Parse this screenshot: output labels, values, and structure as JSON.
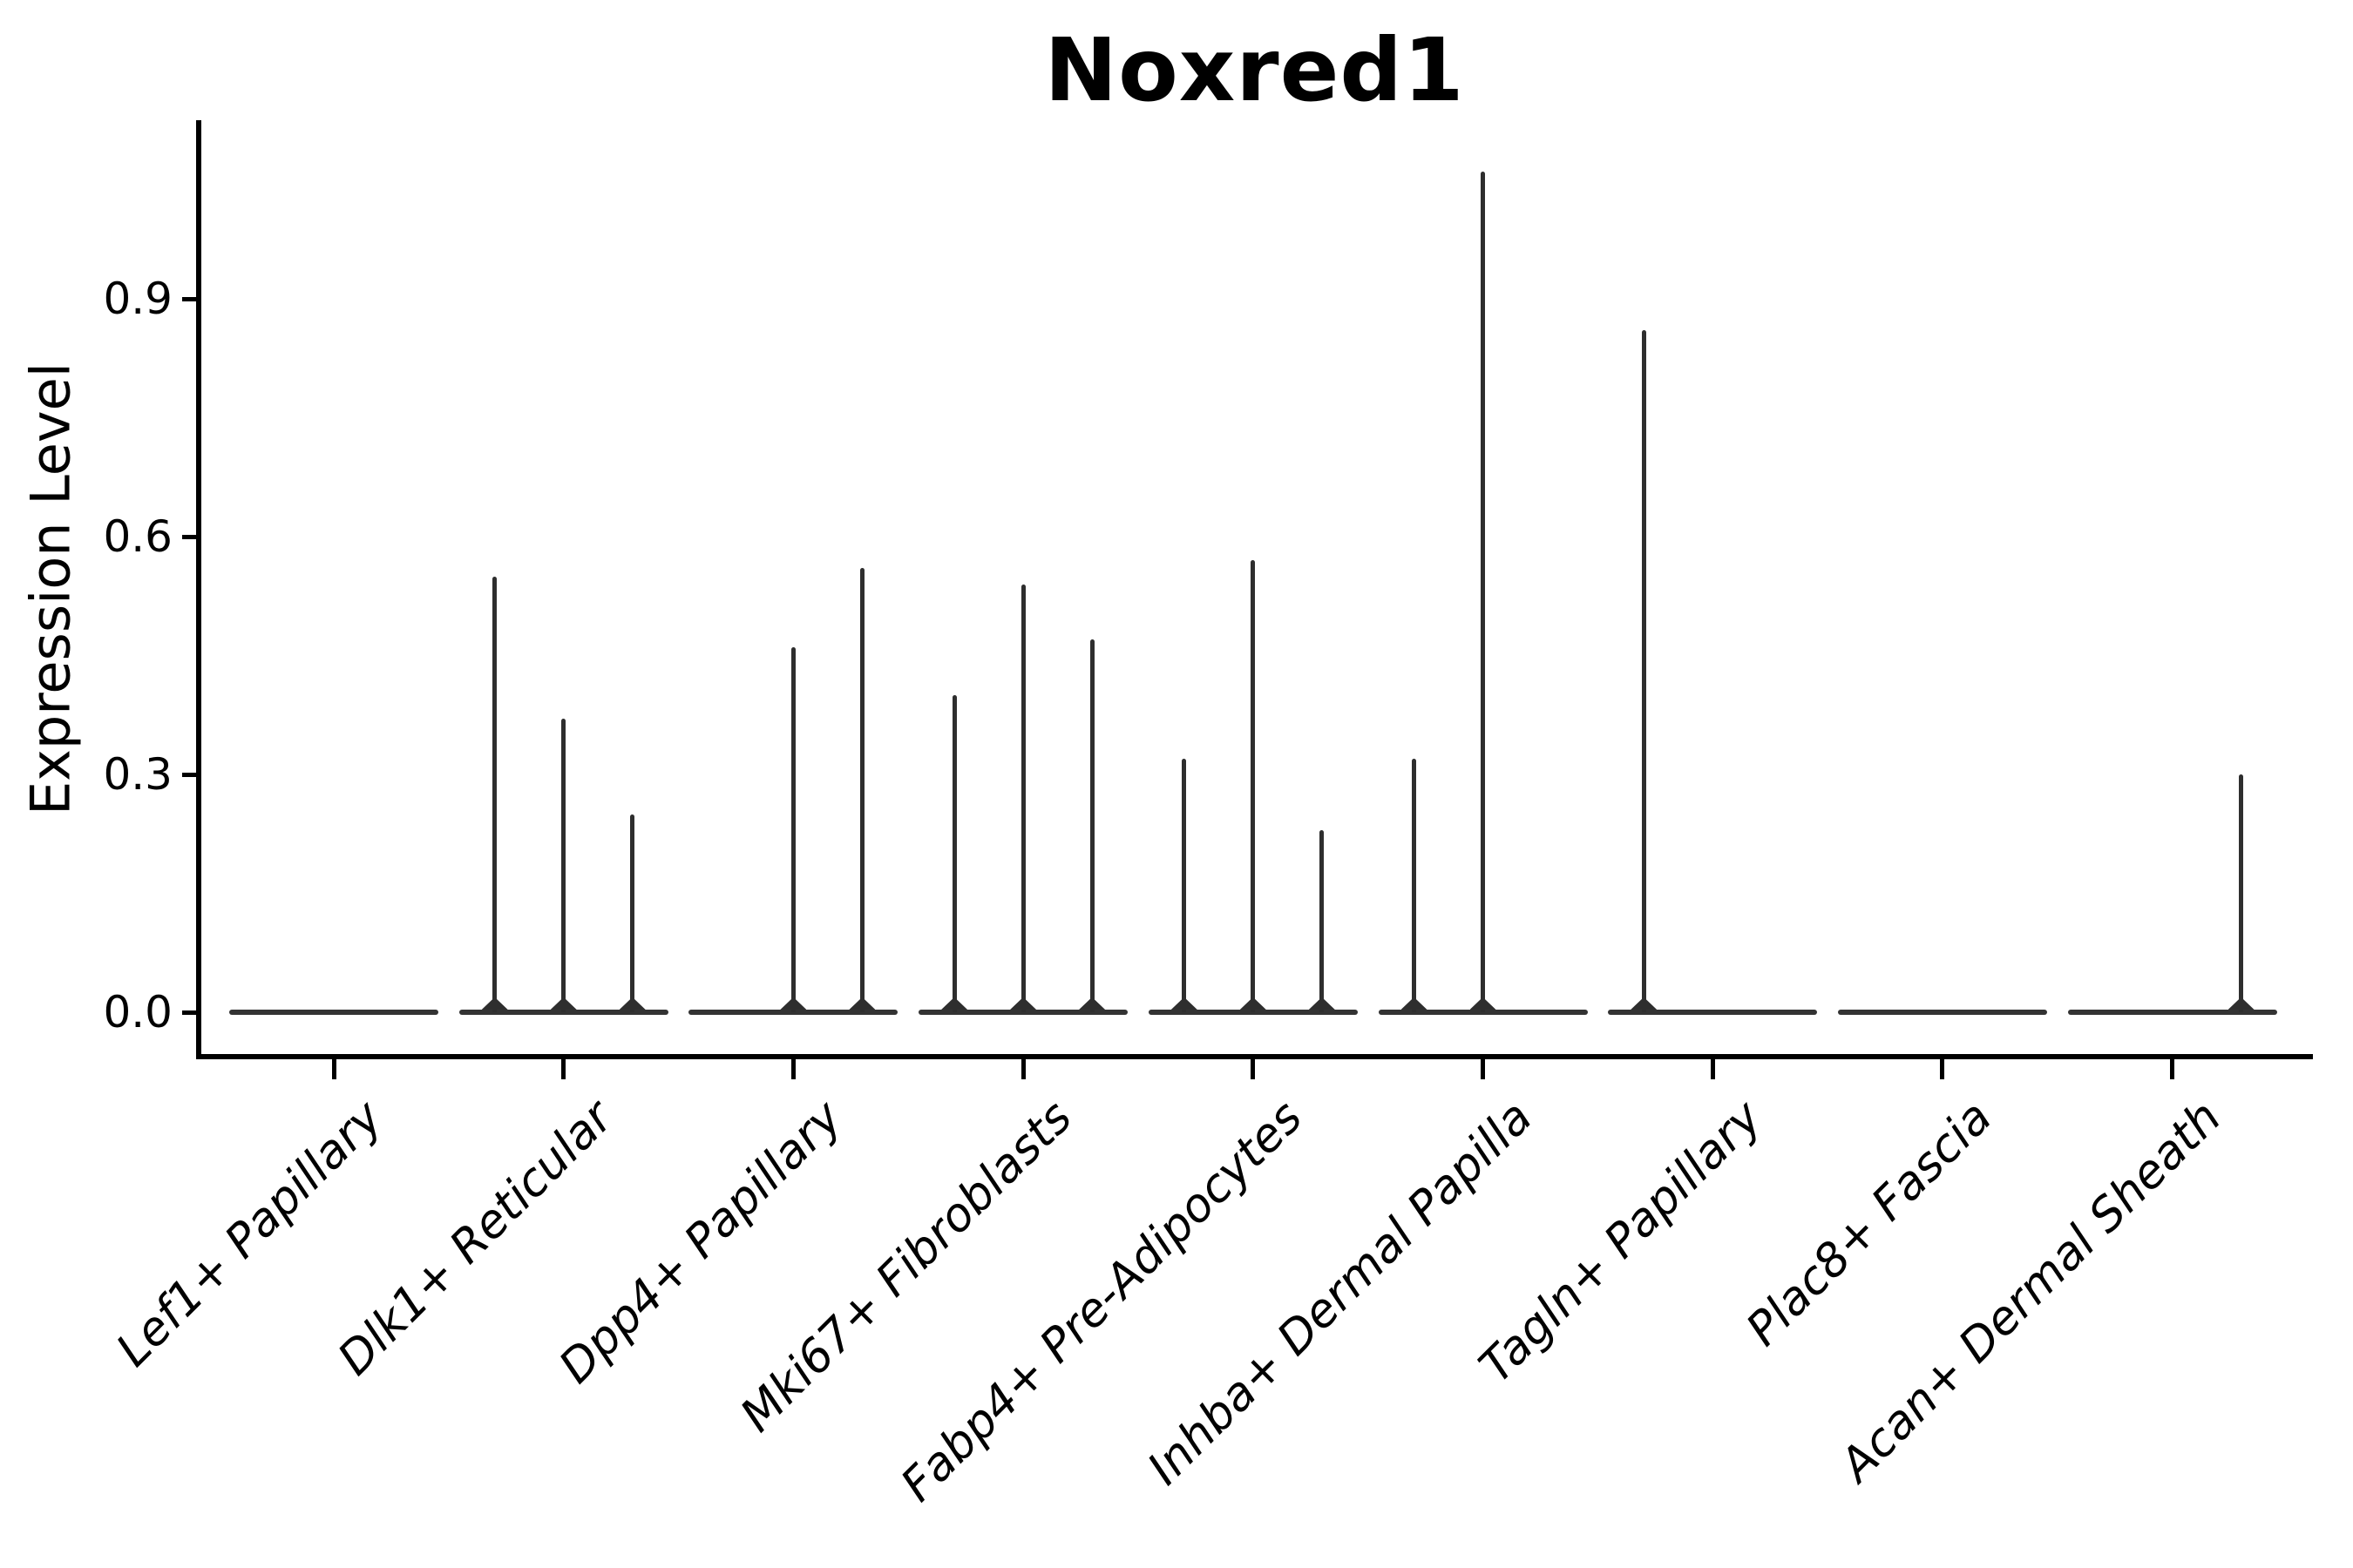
{
  "chart_data": {
    "type": "violin",
    "title": "Noxred1",
    "xlabel": "",
    "ylabel": "Expression Level",
    "ytick_labels": [
      "0.0",
      "0.3",
      "0.6",
      "0.9"
    ],
    "ytick_values": [
      0.0,
      0.3,
      0.6,
      0.9
    ],
    "ylim": [
      -0.056,
      1.125
    ],
    "grid": false,
    "legend": "none",
    "violins_per_group": 3,
    "description": "Violin plot of Noxred1 expression; each cell-type group holds three near-flat violins at 0 with thin density spikes rising to the listed maxima.",
    "groups": [
      {
        "label": "Lef1+ Papillary",
        "spike_maxima": [
          0,
          0,
          0
        ]
      },
      {
        "label": "Dlk1+ Reticular",
        "spike_maxima": [
          0.55,
          0.37,
          0.25
        ]
      },
      {
        "label": "Dpp4+ Papillary",
        "spike_maxima": [
          0,
          0.46,
          0.56
        ]
      },
      {
        "label": "Mki67+ Fibroblasts",
        "spike_maxima": [
          0.4,
          0.54,
          0.47
        ]
      },
      {
        "label": "Fabp4+ Pre-Adipocytes",
        "spike_maxima": [
          0.32,
          0.57,
          0.23
        ]
      },
      {
        "label": "Inhba+ Dermal Papilla",
        "spike_maxima": [
          0.32,
          1.06,
          0
        ]
      },
      {
        "label": "Tagln+ Papillary",
        "spike_maxima": [
          0.86,
          0,
          0
        ]
      },
      {
        "label": "Plac8+ Fascia",
        "spike_maxima": [
          0,
          0,
          0
        ]
      },
      {
        "label": "Acan+ Dermal Sheath",
        "spike_maxima": [
          0,
          0,
          0.3
        ]
      }
    ],
    "colors": {
      "background": "#ffffff",
      "axis": "#000000",
      "text": "#000000",
      "violin_stroke": "#2e2e2e",
      "violin_baseline": "#333333"
    }
  }
}
